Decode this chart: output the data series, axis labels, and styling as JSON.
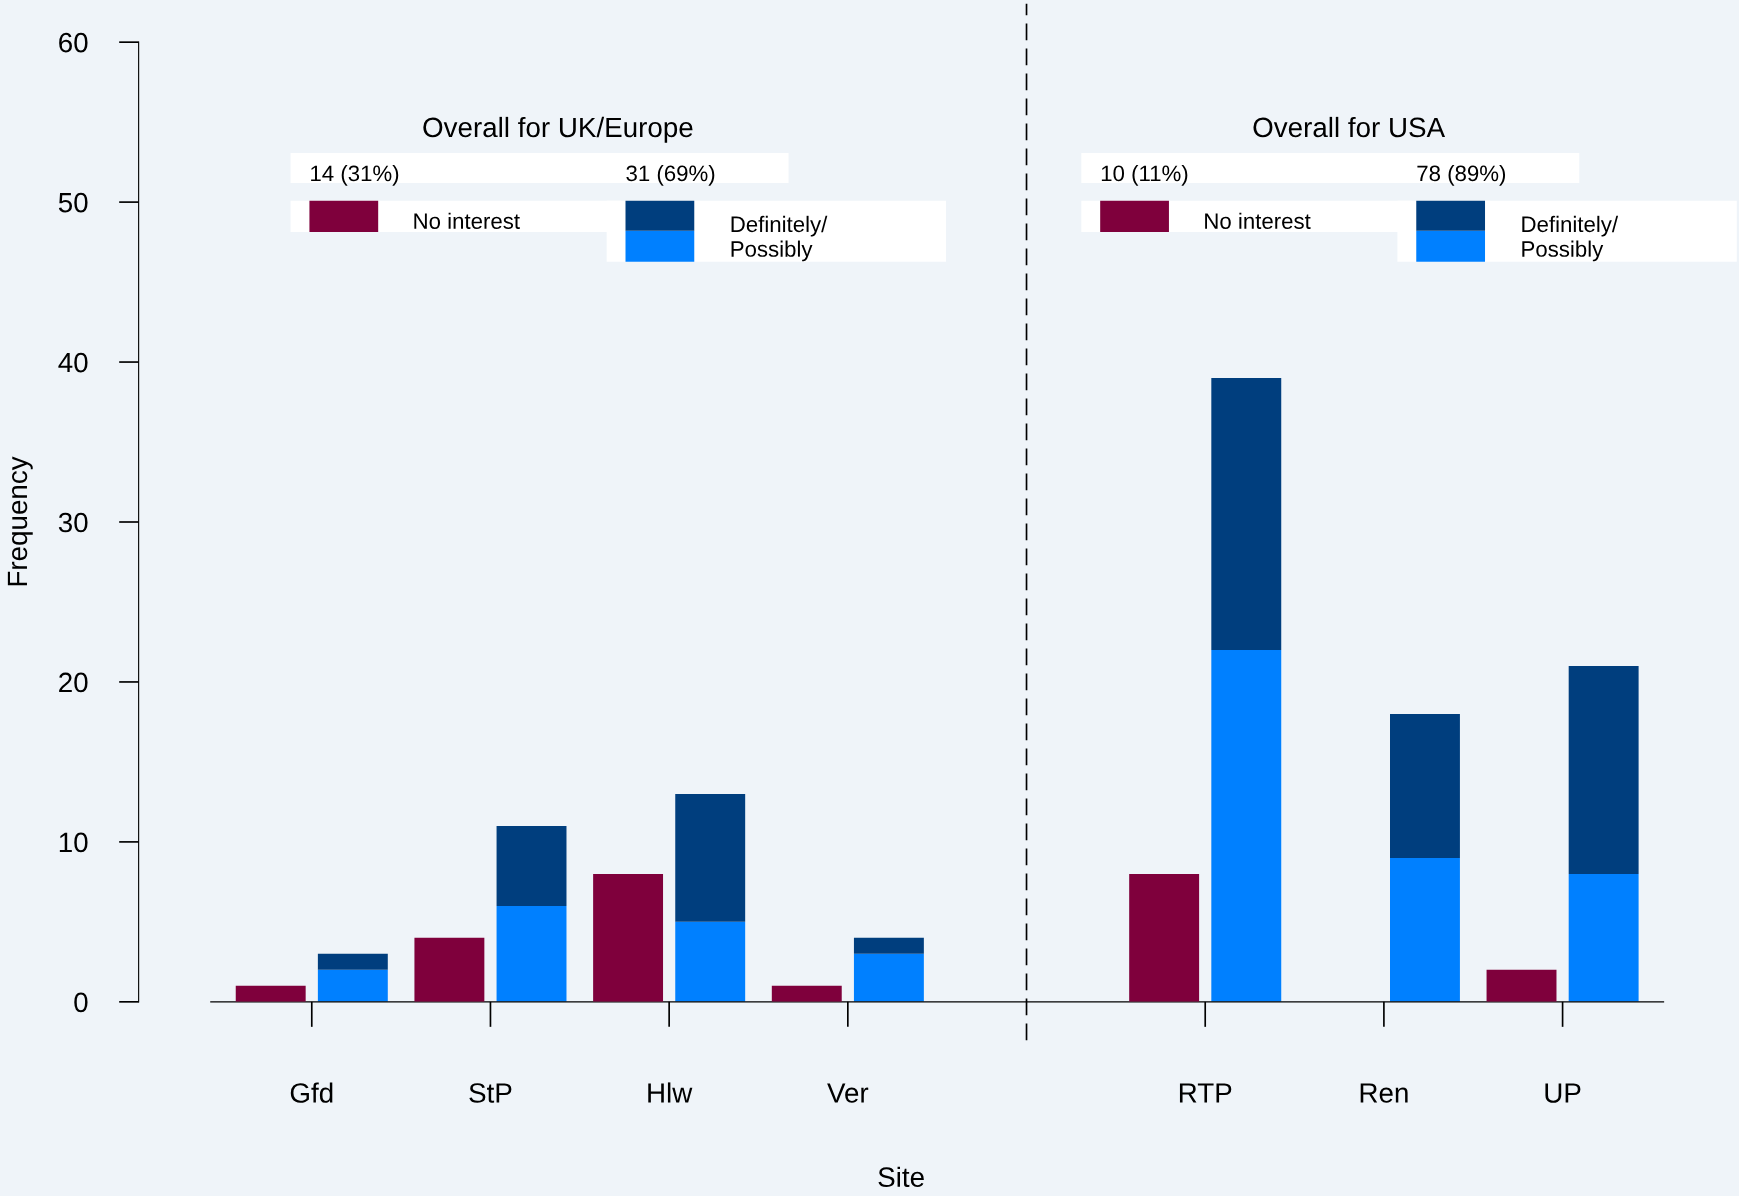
{
  "chart_data": [
    {
      "type": "bar",
      "xlabel": "Site",
      "ylabel": "Frequency",
      "categories": [
        "Gfd",
        "StP",
        "Hlw",
        "Ver",
        null,
        "RTP",
        "Ren",
        "UP"
      ],
      "series": [
        {
          "name": "Definitely/\nPossibly",
          "color": "#0080ff",
          "values": [
            2,
            6,
            5,
            3,
            null,
            22,
            9,
            8
          ]
        },
        {
          "color": "#003e7e",
          "values": [
            1,
            5,
            8,
            1,
            null,
            17,
            9,
            13
          ]
        }
      ],
      "stacked": true,
      "ylim": [
        0,
        60
      ],
      "yticks": [
        0,
        10,
        20,
        30,
        40,
        50,
        60
      ],
      "legend": "top",
      "annotations": [
        "Overall for UK/Europe",
        "14 (31%)",
        "31 (69%)",
        "Overall for USA",
        "10 (11%)",
        "78 (89%)"
      ]
    },
    {
      "type": "bar",
      "series": [
        {
          "name": "No interest",
          "color": "#7f003c",
          "values": [
            1,
            4,
            8,
            1,
            null,
            8,
            0,
            2
          ]
        }
      ],
      "ylim": [
        0,
        60
      ],
      "tick_labels": false,
      "legend": "top"
    }
  ]
}
